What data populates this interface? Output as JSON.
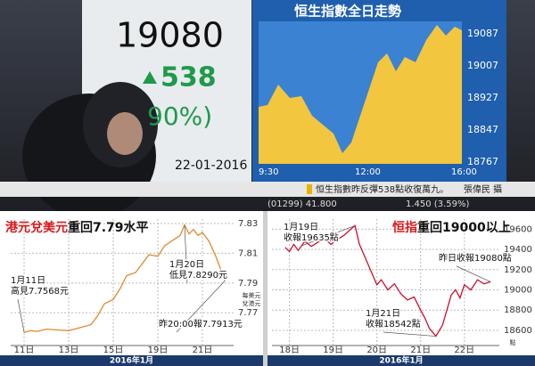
{
  "photo": {
    "price": "19080",
    "change": "538",
    "pct": "90%)",
    "date": "22-01-2016",
    "screen_title": "恒生指數全日走勢",
    "screen_yticks": [
      19087,
      19007,
      18927,
      18847,
      18767
    ],
    "screen_xticks": [
      "9:30",
      "12:00",
      "16:00"
    ],
    "ticker_left": "(01299) 41.800",
    "ticker_right": "1.450 (3.59%)",
    "caption": "恒生指數昨反彈538點收復萬九。",
    "credit": "張偉民 攝"
  },
  "chart_data": [
    {
      "type": "line",
      "title_parts": [
        {
          "text": "港元兌美元",
          "color": "#d7191c"
        },
        {
          "text": "重回7.79水平",
          "color": "#111111"
        }
      ],
      "color": "#e08a2c",
      "grid": true,
      "x": [
        0,
        0.3,
        0.6,
        1,
        1.5,
        2,
        2.5,
        3,
        3.3,
        3.6,
        4,
        4.3,
        4.6,
        5,
        5.3,
        5.6,
        6,
        6.3,
        6.6,
        7,
        7.2,
        7.4,
        7.6,
        7.8,
        8,
        8.3,
        8.6,
        8.8,
        9
      ],
      "values": [
        7.7568,
        7.758,
        7.7575,
        7.759,
        7.7585,
        7.758,
        7.76,
        7.762,
        7.768,
        7.776,
        7.779,
        7.786,
        7.795,
        7.797,
        7.803,
        7.809,
        7.808,
        7.815,
        7.818,
        7.822,
        7.829,
        7.823,
        7.826,
        7.822,
        7.824,
        7.818,
        7.808,
        7.8,
        7.7913
      ],
      "xlim": [
        -0.6,
        9.4
      ],
      "xticks": [
        {
          "value": 0,
          "label": "11日"
        },
        {
          "value": 2,
          "label": "13日"
        },
        {
          "value": 4,
          "label": "15日"
        },
        {
          "value": 6,
          "label": "19日"
        },
        {
          "value": 8,
          "label": "21日"
        }
      ],
      "ylim": [
        7.748,
        7.833
      ],
      "yticks": [
        7.83,
        7.81,
        7.79,
        7.77
      ],
      "ylabel": [
        "每美元",
        "兌港元"
      ],
      "xlabel": "2016年1月",
      "annotations": [
        [
          "1月11日",
          "高見7.7568元"
        ],
        [
          "1月20日",
          "低見7.8290元"
        ],
        [
          "昨20:00報7.7913元"
        ]
      ]
    },
    {
      "type": "line",
      "title_parts": [
        {
          "text": "恒指",
          "color": "#d7191c"
        },
        {
          "text": "重回19000以上",
          "color": "#111111"
        }
      ],
      "color": "#c8102e",
      "grid": true,
      "x": [
        17.9,
        18.0,
        18.1,
        18.2,
        18.35,
        18.5,
        18.65,
        18.8,
        18.95,
        19.1,
        19.25,
        19.4,
        19.5,
        19.6,
        19.7,
        19.8,
        19.9,
        20.0,
        20.1,
        20.25,
        20.4,
        20.55,
        20.7,
        20.85,
        21.0,
        21.1,
        21.2,
        21.35,
        21.5,
        21.6,
        21.7,
        21.8,
        21.9,
        22.0,
        22.15,
        22.3,
        22.45,
        22.6
      ],
      "values": [
        19420,
        19380,
        19450,
        19390,
        19480,
        19430,
        19470,
        19510,
        19450,
        19500,
        19540,
        19600,
        19635,
        19450,
        19350,
        19250,
        19150,
        19050,
        19100,
        19000,
        19060,
        18960,
        18900,
        18930,
        18800,
        18720,
        18620,
        18542,
        18650,
        18800,
        18950,
        19000,
        18920,
        19050,
        19000,
        19100,
        19060,
        19080
      ],
      "xlim": [
        17.6,
        22.8
      ],
      "xticks": [
        {
          "value": 18,
          "label": "18日"
        },
        {
          "value": 19,
          "label": "19日"
        },
        {
          "value": 20,
          "label": "20日"
        },
        {
          "value": 21,
          "label": "21日"
        },
        {
          "value": 22,
          "label": "22日"
        }
      ],
      "ylim": [
        18450,
        19700
      ],
      "yticks": [
        19600,
        19400,
        19200,
        19000,
        18800,
        18600
      ],
      "ylabel": [
        "點"
      ],
      "xlabel": "2016年1月",
      "annotations": [
        [
          "1月19日",
          "收報19635點"
        ],
        [
          "1月21日",
          "收報18542點"
        ],
        [
          "昨日收報19080點"
        ]
      ]
    }
  ]
}
